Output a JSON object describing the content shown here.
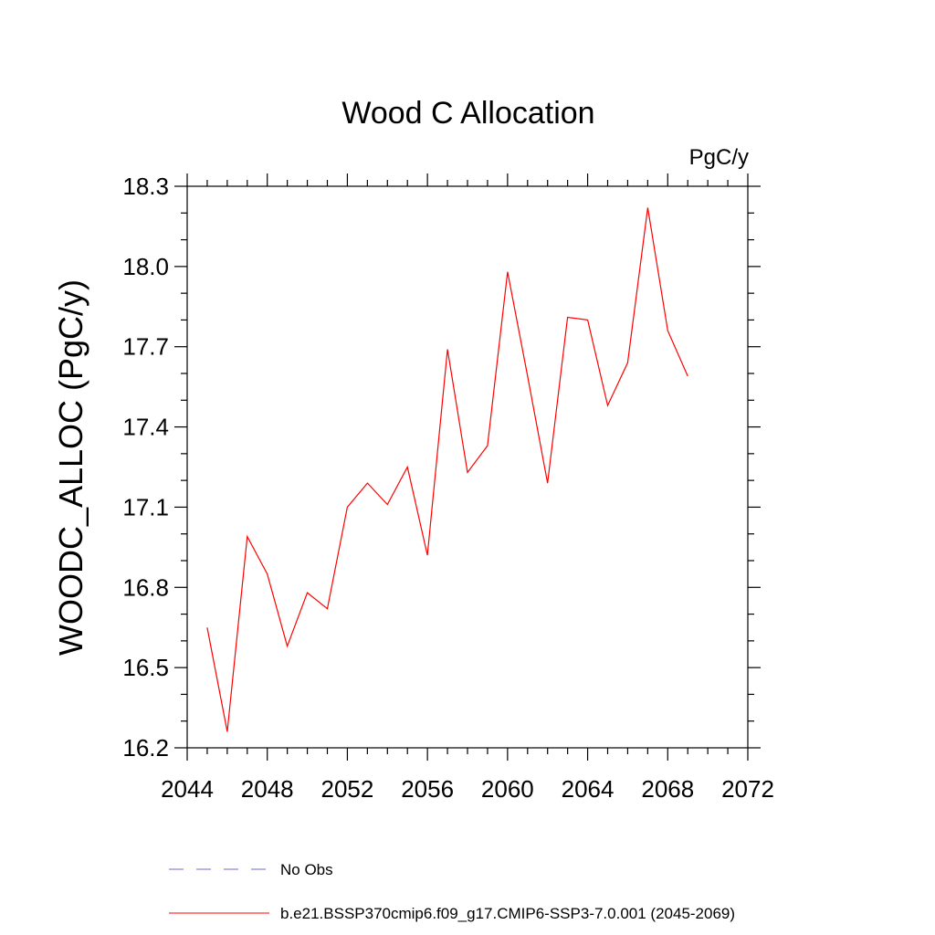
{
  "chart_data": {
    "type": "line",
    "title": "Wood C Allocation",
    "units_label": "PgC/y",
    "xlabel": "",
    "ylabel": "WOODC_ALLOC  (PgC/y)",
    "xlim": [
      2044,
      2072
    ],
    "ylim": [
      16.2,
      18.3
    ],
    "x_ticks": [
      2044,
      2048,
      2052,
      2056,
      2060,
      2064,
      2068,
      2072
    ],
    "y_ticks": [
      16.2,
      16.5,
      16.8,
      17.1,
      17.4,
      17.7,
      18.0,
      18.3
    ],
    "x_tick_labels": [
      "2044",
      "2048",
      "2052",
      "2056",
      "2060",
      "2064",
      "2068",
      "2072"
    ],
    "y_tick_labels": [
      "16.2",
      "16.5",
      "16.8",
      "17.1",
      "17.4",
      "17.7",
      "18.0",
      "18.3"
    ],
    "grid": false,
    "legend_position": "bottom",
    "series": [
      {
        "name": "b.e21.BSSP370cmip6.f09_g17.CMIP6-SSP3-7.0.001 (2045-2069)",
        "color": "#ff0000",
        "style": "solid",
        "x": [
          2045,
          2046,
          2047,
          2048,
          2049,
          2050,
          2051,
          2052,
          2053,
          2054,
          2055,
          2056,
          2057,
          2058,
          2059,
          2060,
          2061,
          2062,
          2063,
          2064,
          2065,
          2066,
          2067,
          2068,
          2069
        ],
        "y": [
          16.65,
          16.26,
          16.99,
          16.85,
          16.58,
          16.78,
          16.72,
          17.1,
          17.19,
          17.11,
          17.25,
          16.92,
          17.69,
          17.23,
          17.33,
          17.98,
          17.59,
          17.19,
          17.81,
          17.8,
          17.48,
          17.64,
          18.22,
          17.76,
          17.59
        ]
      }
    ],
    "legend": [
      {
        "label": "No Obs",
        "color": "#6b6bd6",
        "style": "dashed"
      },
      {
        "label": "b.e21.BSSP370cmip6.f09_g17.CMIP6-SSP3-7.0.001 (2045-2069)",
        "color": "#ff0000",
        "style": "solid"
      }
    ]
  }
}
